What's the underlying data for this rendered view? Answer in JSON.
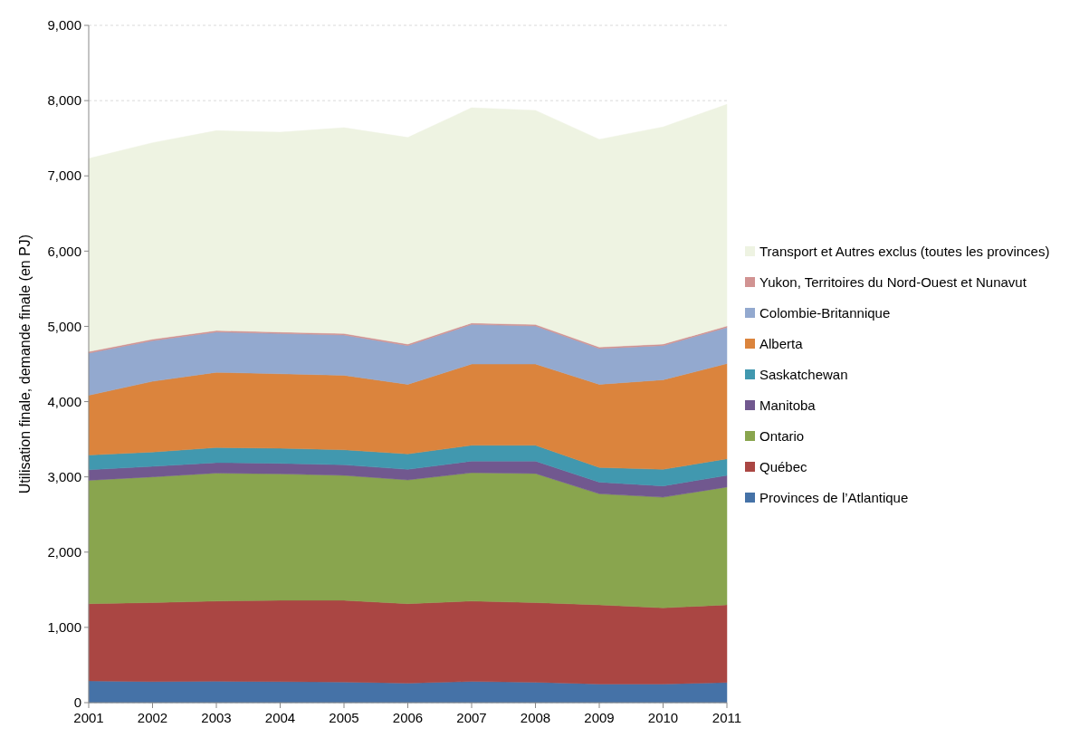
{
  "chart_data": {
    "type": "area",
    "stacked": true,
    "ylabel": "Utilisation finale, demande finale (en PJ)",
    "x": [
      2001,
      2002,
      2003,
      2004,
      2005,
      2006,
      2007,
      2008,
      2009,
      2010,
      2011
    ],
    "xlim": [
      2001,
      2011
    ],
    "xticks": [
      2001,
      2002,
      2003,
      2004,
      2005,
      2006,
      2007,
      2008,
      2009,
      2010,
      2011
    ],
    "ylim": [
      0,
      9000
    ],
    "yticks": [
      {
        "value": 0,
        "label": "0"
      },
      {
        "value": 1000,
        "label": "1,000"
      },
      {
        "value": 2000,
        "label": "2,000"
      },
      {
        "value": 3000,
        "label": "3,000"
      },
      {
        "value": 4000,
        "label": "4,000"
      },
      {
        "value": 5000,
        "label": "5,000"
      },
      {
        "value": 6000,
        "label": "6,000"
      },
      {
        "value": 7000,
        "label": "7,000"
      },
      {
        "value": 8000,
        "label": "8,000"
      },
      {
        "value": 9000,
        "label": "9,000"
      }
    ],
    "grid": "y",
    "legend": "right",
    "series": [
      {
        "name": "Provinces de l’Atlantique",
        "color": "#4572a7",
        "values": [
          290,
          280,
          285,
          280,
          275,
          260,
          282,
          272,
          248,
          248,
          268
        ]
      },
      {
        "name": "Québec",
        "color": "#aa4643",
        "values": [
          1025,
          1050,
          1065,
          1080,
          1085,
          1055,
          1068,
          1058,
          1052,
          1012,
          1032
        ]
      },
      {
        "name": "Ontario",
        "color": "#89a54e",
        "values": [
          1640,
          1670,
          1700,
          1680,
          1660,
          1645,
          1705,
          1715,
          1475,
          1470,
          1565
        ]
      },
      {
        "name": "Manitoba",
        "color": "#71588f",
        "values": [
          140,
          140,
          140,
          140,
          140,
          140,
          155,
          165,
          155,
          150,
          155
        ]
      },
      {
        "name": "Saskatchewan",
        "color": "#4198af",
        "values": [
          195,
          190,
          200,
          200,
          200,
          205,
          210,
          210,
          195,
          220,
          220
        ]
      },
      {
        "name": "Alberta",
        "color": "#db843d",
        "values": [
          795,
          940,
          1000,
          990,
          990,
          925,
          1080,
          1080,
          1105,
          1190,
          1265
        ]
      },
      {
        "name": "Colombie-Britannique",
        "color": "#93a9cf",
        "values": [
          560,
          540,
          535,
          535,
          535,
          515,
          525,
          505,
          475,
          455,
          480
        ]
      },
      {
        "name": "Yukon, Territoires du Nord-Ouest et Nunavut",
        "color": "#d19392",
        "values": [
          20,
          20,
          20,
          20,
          20,
          20,
          20,
          20,
          20,
          20,
          20
        ]
      },
      {
        "name": "Transport et Autres exclus (toutes les provinces)",
        "color": "#eef3e2",
        "values": [
          2565,
          2610,
          2655,
          2655,
          2735,
          2745,
          2860,
          2845,
          2760,
          2885,
          2945
        ]
      }
    ]
  }
}
